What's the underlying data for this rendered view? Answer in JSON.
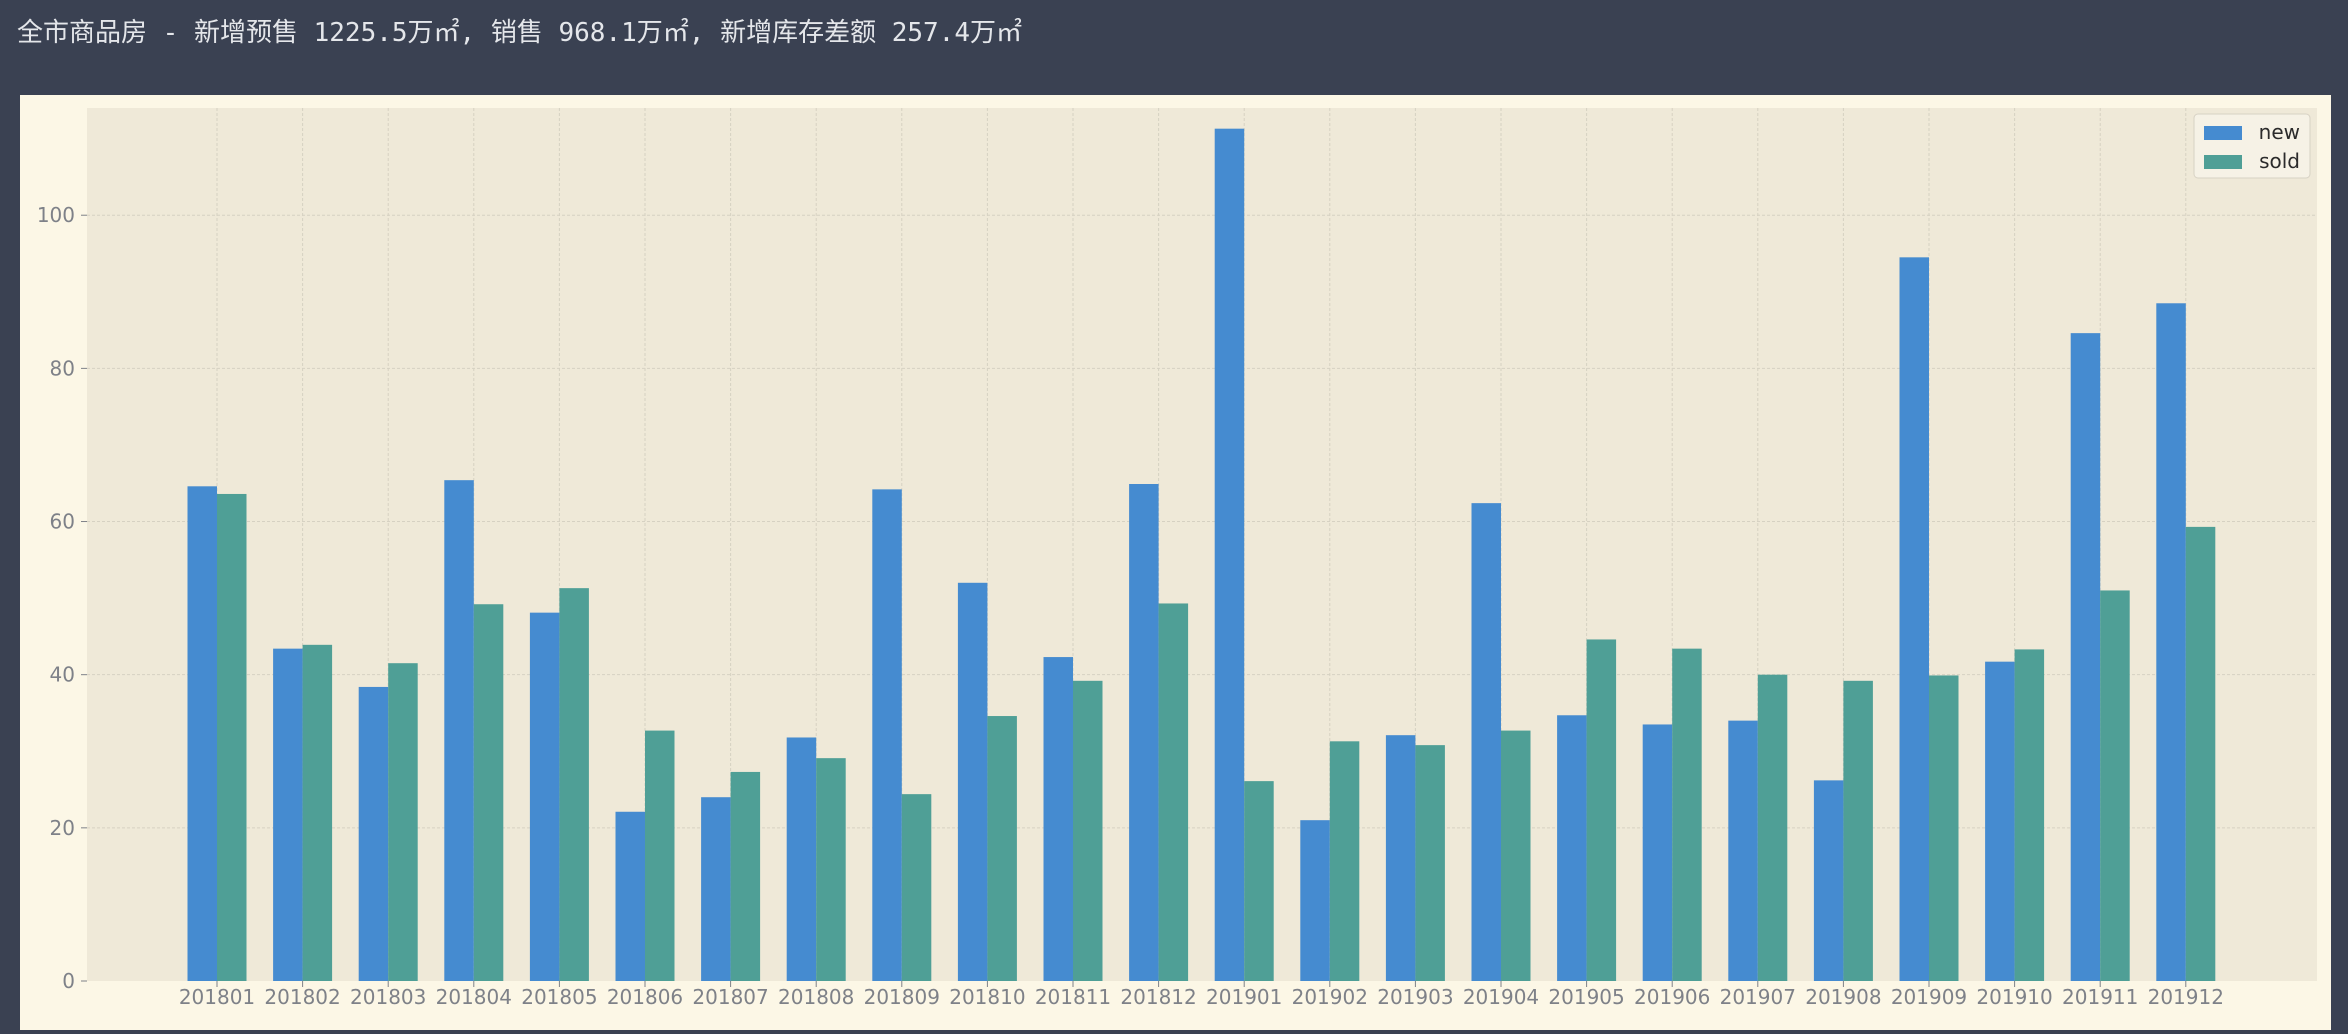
{
  "header": {
    "title": "全市商品房 - 新增预售 1225.5万㎡, 销售 968.1万㎡, 新增库存差额 257.4万㎡"
  },
  "colors": {
    "page_background": "#3a4152",
    "card_background": "#fcf7e6",
    "plot_background": "#efe9d8",
    "new": "#458bd0",
    "sold": "#4f9f96",
    "grid": "#d6d1c2",
    "tick_text": "#7e8188"
  },
  "chart_data": {
    "type": "bar",
    "title": "",
    "xlabel": "",
    "ylabel": "",
    "ylim": [
      0,
      114
    ],
    "yticks": [
      0,
      20,
      40,
      60,
      80,
      100
    ],
    "grid": true,
    "legend_position": "top-right",
    "categories": [
      "201801",
      "201802",
      "201803",
      "201804",
      "201805",
      "201806",
      "201807",
      "201808",
      "201809",
      "201810",
      "201811",
      "201812",
      "201901",
      "201902",
      "201903",
      "201904",
      "201905",
      "201906",
      "201907",
      "201908",
      "201909",
      "201910",
      "201911",
      "201912"
    ],
    "series": [
      {
        "name": "new",
        "color": "#458bd0",
        "values": [
          64.6,
          43.4,
          38.4,
          65.4,
          48.1,
          22.1,
          24.0,
          31.8,
          64.2,
          52.0,
          42.3,
          64.9,
          111.3,
          21.0,
          32.1,
          62.4,
          34.7,
          33.5,
          34.0,
          26.2,
          94.5,
          41.7,
          84.6,
          88.5
        ]
      },
      {
        "name": "sold",
        "color": "#4f9f96",
        "values": [
          63.6,
          43.9,
          41.5,
          49.2,
          51.3,
          32.7,
          27.3,
          29.1,
          24.4,
          34.6,
          39.2,
          49.3,
          26.1,
          31.3,
          30.8,
          32.7,
          44.6,
          43.4,
          40.0,
          39.2,
          39.9,
          43.3,
          51.0,
          59.3
        ]
      }
    ]
  }
}
